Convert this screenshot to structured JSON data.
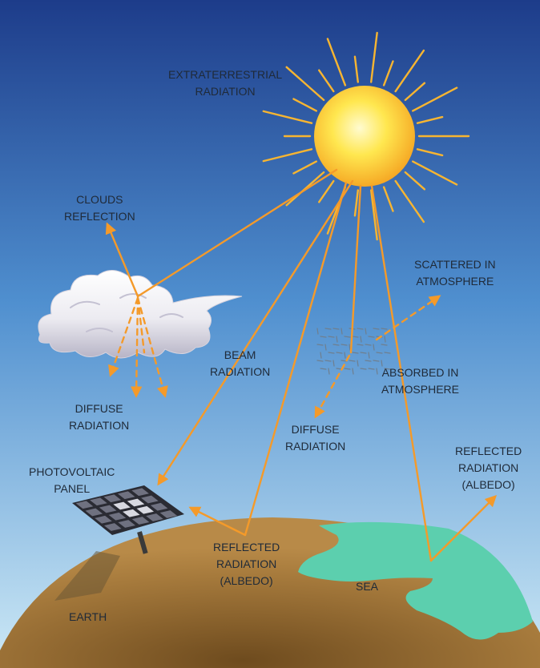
{
  "colors": {
    "sky_top": "#1d3c8a",
    "sky_mid": "#4f8fcf",
    "sky_bottom": "#cde9f6",
    "ray": "#f49a2a",
    "sun_core": "#ffe74f",
    "sun_edge": "#f5a623",
    "earth": "#a67a3c",
    "earth_dark": "#6e4b1e",
    "sea": "#5ccfae",
    "cloud": "#ecebf1",
    "cloud_shade": "#b7b4c6",
    "panel_cell": "#6f7180",
    "label_text": "#1f2a38"
  },
  "icons": {
    "sun": "sun-icon",
    "cloud": "cloud-icon",
    "panel": "solar-panel-icon",
    "particles": "atmosphere-particles-icon"
  },
  "labels": {
    "extraterrestrial": {
      "line1": "EXTRATERRESTRIAL",
      "line2": "RADIATION"
    },
    "clouds_reflection": {
      "line1": "CLOUDS",
      "line2": "REFLECTION"
    },
    "scattered": {
      "line1": "SCATTERED IN",
      "line2": "ATMOSPHERE"
    },
    "beam": {
      "line1": "BEAM",
      "line2": "RADIATION"
    },
    "absorbed": {
      "line1": "ABSORBED IN",
      "line2": "ATMOSPHERE"
    },
    "diffuse_cloud": {
      "line1": "DIFFUSE",
      "line2": "RADIATION"
    },
    "diffuse_atm": {
      "line1": "DIFFUSE",
      "line2": "RADIATION"
    },
    "pv_panel": {
      "line1": "PHOTOVOLTAIC",
      "line2": "PANEL"
    },
    "reflected_sea": {
      "line1": "REFLECTED",
      "line2": "RADIATION",
      "line3": "(ALBEDO)"
    },
    "reflected_ground": {
      "line1": "REFLECTED",
      "line2": "RADIATION",
      "line3": "(ALBEDO)"
    },
    "sea": "SEA",
    "earth": "EARTH"
  }
}
